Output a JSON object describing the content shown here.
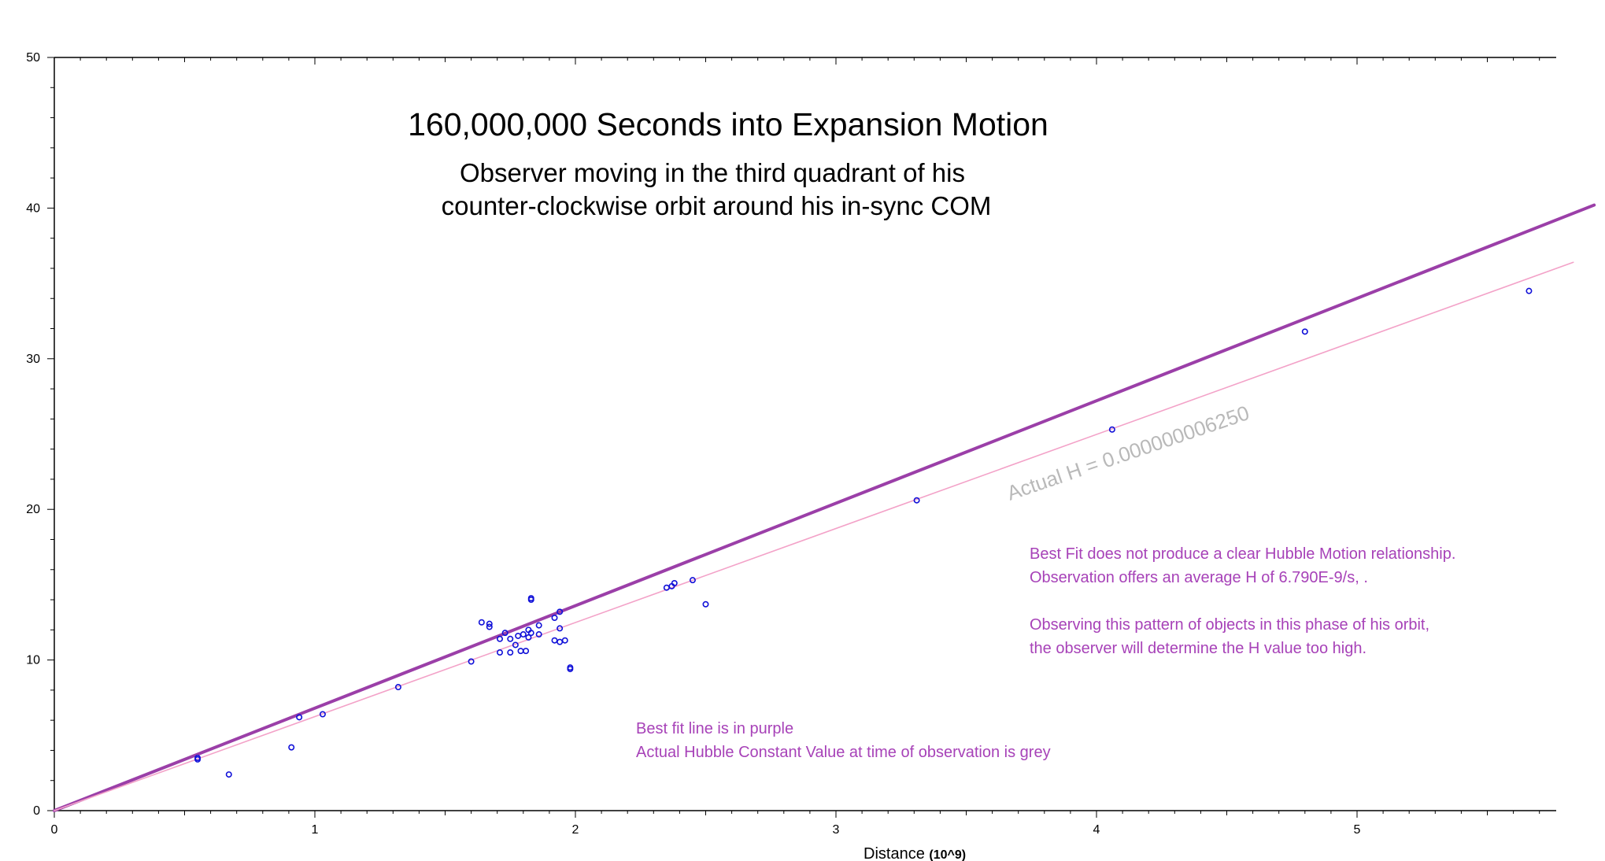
{
  "chart_data": {
    "type": "scatter",
    "title": "160,000,000 Seconds into Expansion Motion",
    "subtitle_lines": [
      "Observer moving in the third quadrant of his",
      "counter-clockwise orbit around his in-sync COM"
    ],
    "xlabel": "Distance",
    "xlabel_unit": "(10^9)",
    "ylabel": "",
    "xlim": [
      0,
      5.78
    ],
    "ylim": [
      0,
      50
    ],
    "x_ticks": [
      "0",
      "1",
      "2",
      "3",
      "4",
      "5"
    ],
    "y_ticks": [
      "0",
      "10",
      "20",
      "30",
      "40",
      "50"
    ],
    "grid": false,
    "points": [
      {
        "x": 0.55,
        "y": 3.5
      },
      {
        "x": 0.55,
        "y": 3.4
      },
      {
        "x": 0.67,
        "y": 2.4
      },
      {
        "x": 0.91,
        "y": 4.2
      },
      {
        "x": 0.94,
        "y": 6.2
      },
      {
        "x": 1.03,
        "y": 6.4
      },
      {
        "x": 1.32,
        "y": 8.2
      },
      {
        "x": 1.6,
        "y": 9.9
      },
      {
        "x": 1.64,
        "y": 12.5
      },
      {
        "x": 1.67,
        "y": 12.2
      },
      {
        "x": 1.67,
        "y": 12.4
      },
      {
        "x": 1.71,
        "y": 10.5
      },
      {
        "x": 1.71,
        "y": 11.4
      },
      {
        "x": 1.73,
        "y": 11.8
      },
      {
        "x": 1.75,
        "y": 10.5
      },
      {
        "x": 1.75,
        "y": 11.4
      },
      {
        "x": 1.77,
        "y": 11.0
      },
      {
        "x": 1.78,
        "y": 11.6
      },
      {
        "x": 1.79,
        "y": 10.6
      },
      {
        "x": 1.8,
        "y": 11.7
      },
      {
        "x": 1.81,
        "y": 10.6
      },
      {
        "x": 1.82,
        "y": 11.5
      },
      {
        "x": 1.82,
        "y": 12.0
      },
      {
        "x": 1.83,
        "y": 14.0
      },
      {
        "x": 1.83,
        "y": 14.1
      },
      {
        "x": 1.83,
        "y": 11.8
      },
      {
        "x": 1.86,
        "y": 12.3
      },
      {
        "x": 1.86,
        "y": 11.7
      },
      {
        "x": 1.92,
        "y": 11.3
      },
      {
        "x": 1.92,
        "y": 12.8
      },
      {
        "x": 1.94,
        "y": 13.2
      },
      {
        "x": 1.94,
        "y": 12.1
      },
      {
        "x": 1.94,
        "y": 11.2
      },
      {
        "x": 1.96,
        "y": 11.3
      },
      {
        "x": 1.98,
        "y": 9.4
      },
      {
        "x": 1.98,
        "y": 9.5
      },
      {
        "x": 2.35,
        "y": 14.8
      },
      {
        "x": 2.37,
        "y": 14.9
      },
      {
        "x": 2.38,
        "y": 15.1
      },
      {
        "x": 2.45,
        "y": 15.3
      },
      {
        "x": 2.5,
        "y": 13.7
      },
      {
        "x": 3.31,
        "y": 20.6
      },
      {
        "x": 4.06,
        "y": 25.3
      },
      {
        "x": 4.8,
        "y": 31.8
      },
      {
        "x": 5.66,
        "y": 34.5
      }
    ],
    "lines": [
      {
        "name": "Best fit",
        "color": "#9b3fa8",
        "x": [
          0,
          5.91
        ],
        "y": [
          0,
          40.2
        ]
      },
      {
        "name": "Actual H",
        "color": "#f3a2c8",
        "x": [
          0,
          5.83
        ],
        "y": [
          0,
          36.4
        ]
      }
    ],
    "line_label": "Actual H = 0.000000006250",
    "annotations": {
      "right_block": [
        "Best Fit does not produce a clear Hubble Motion relationship.",
        "Observation offers an average H of  6.790E-9/s, .",
        "",
        "Observing this pattern of objects in this phase of his orbit,",
        "the observer will determine the H value too high."
      ],
      "bottom_block": [
        "Best fit line is in purple",
        "Actual Hubble Constant Value at time of observation is grey"
      ]
    },
    "colors": {
      "points": "#1010d8",
      "annotation_text": "#a742b8",
      "line_label": "#b9b9b9"
    }
  }
}
